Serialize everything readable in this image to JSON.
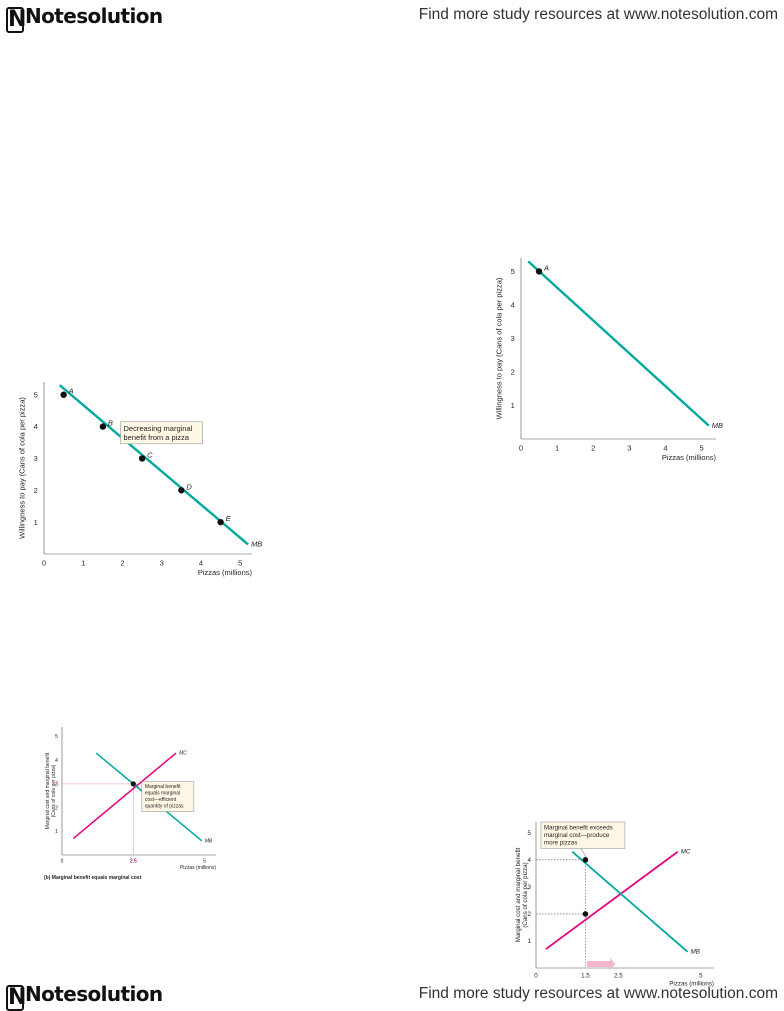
{
  "header": {
    "logo": "Notesolution",
    "tagline": "Find more study resources at www.notesolution.com"
  },
  "footer": {
    "logo": "Notesolution",
    "tagline": "Find more study resources at www.notesolution.com"
  },
  "colors": {
    "mb_line": "#00a99d",
    "mc_line": "#e6007e",
    "callout_fill": "#fdf7e6",
    "arrow_fill": "#f4b6c8"
  },
  "chart_data": [
    {
      "id": "chart1",
      "type": "line",
      "xlabel": "Pizzas (millions)",
      "ylabel": "Willingness to pay (Cans of cola per pizza)",
      "xlim": [
        0,
        5.3
      ],
      "ylim": [
        0,
        5.4
      ],
      "x_ticks": [
        "0",
        "1",
        "2",
        "3",
        "4",
        "5"
      ],
      "y_ticks": [
        "1",
        "2",
        "3",
        "4",
        "5"
      ],
      "series": [
        {
          "name": "MB",
          "x": [
            0.4,
            5.2
          ],
          "y": [
            5.3,
            0.3
          ]
        }
      ],
      "points": [
        {
          "label": "A",
          "x": 0.5,
          "y": 5
        },
        {
          "label": "B",
          "x": 1.5,
          "y": 4
        },
        {
          "label": "C",
          "x": 2.5,
          "y": 3
        },
        {
          "label": "D",
          "x": 3.5,
          "y": 2
        },
        {
          "label": "E",
          "x": 4.5,
          "y": 1
        }
      ],
      "callout": [
        "Decreasing marginal",
        "benefit from a pizza"
      ]
    },
    {
      "id": "chart2",
      "type": "line",
      "xlabel": "Pizzas (millions)",
      "ylabel": "Willingness to pay (Cans of cola per pizza)",
      "xlim": [
        0,
        5.4
      ],
      "ylim": [
        0,
        5.4
      ],
      "x_ticks": [
        "0",
        "1",
        "2",
        "3",
        "4",
        "5"
      ],
      "y_ticks": [
        "1",
        "2",
        "3",
        "4",
        "5"
      ],
      "series": [
        {
          "name": "MB",
          "x": [
            0.2,
            5.2
          ],
          "y": [
            5.3,
            0.4
          ]
        }
      ],
      "points": [
        {
          "label": "A",
          "x": 0.5,
          "y": 5
        }
      ]
    },
    {
      "id": "chart3",
      "type": "line",
      "xlabel": "Pizzas (millions)",
      "ylabel": "Marginal cost and marginal benefit (Cans of cola per pizza)",
      "xlim": [
        0,
        5.4
      ],
      "ylim": [
        0,
        5.4
      ],
      "x_ticks": [
        "0",
        "2.5",
        "5"
      ],
      "y_ticks": [
        "1",
        "2",
        "3",
        "4",
        "5"
      ],
      "series": [
        {
          "name": "MC",
          "x": [
            0.4,
            4.0
          ],
          "y": [
            0.7,
            4.3
          ]
        },
        {
          "name": "MB",
          "x": [
            1.2,
            4.9
          ],
          "y": [
            4.3,
            0.6
          ]
        }
      ],
      "points": [
        {
          "label": "",
          "x": 2.5,
          "y": 3
        }
      ],
      "guides": {
        "x_value": "2.5",
        "y_value": "3"
      },
      "callout": [
        "Marginal benefit",
        "equals marginal",
        "cost—efficient",
        "quantity of pizzas"
      ],
      "caption": "(b) Marginal benefit equals marginal cost"
    },
    {
      "id": "chart4",
      "type": "line",
      "xlabel": "Pizzas (millions)",
      "ylabel": "Marginal cost and marginal benefit (Cans of cola per pizza)",
      "xlim": [
        0,
        5.4
      ],
      "ylim": [
        0,
        5.4
      ],
      "x_ticks": [
        "0",
        "1.5",
        "2.5",
        "5"
      ],
      "y_ticks": [
        "1",
        "2",
        "3",
        "4",
        "5"
      ],
      "series": [
        {
          "name": "MC",
          "x": [
            0.3,
            4.3
          ],
          "y": [
            0.7,
            4.3
          ]
        },
        {
          "name": "MB",
          "x": [
            1.1,
            4.6
          ],
          "y": [
            4.3,
            0.6
          ]
        }
      ],
      "points": [
        {
          "label": "",
          "x": 1.5,
          "y": 4
        },
        {
          "label": "",
          "x": 1.5,
          "y": 2
        }
      ],
      "callout": [
        "Marginal benefit exceeds",
        "marginal cost—produce",
        "more pizzas"
      ]
    }
  ]
}
